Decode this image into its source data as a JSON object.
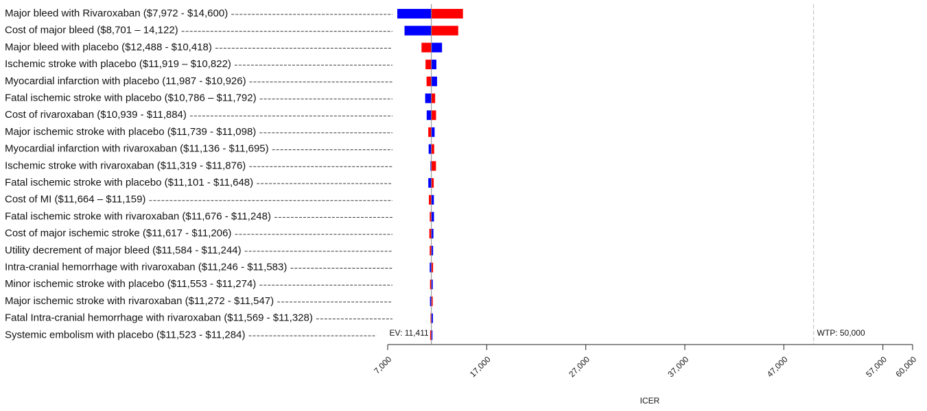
{
  "chart_data": {
    "type": "tornado",
    "x_label": "ICER",
    "categories": [
      "Major bleed with Rivaroxaban ($7,972 - $14,600)",
      "Cost of major bleed ($8,701 – 14,122)",
      "Major bleed with placebo ($12,488 - $10,418)",
      "Ischemic stroke with placebo ($11,919 – $10,822)",
      "Myocardial infarction with placebo (11,987 - $10,926)",
      "Fatal ischemic stroke with placebo ($10,786 – $11,792)",
      "Cost of rivaroxaban ($10,939 - $11,884)",
      "Major ischemic stroke with placebo ($11,739 - $11,098)",
      "Myocardial infarction with rivaroxaban ($11,136 - $11,695)",
      "Ischemic stroke with rivaroxaban ($11,319 - $11,876)",
      "Fatal ischemic stroke with placebo ($11,101 - $11,648)",
      "Cost of MI ($11,664 – $11,159)",
      "Fatal ischemic stroke with rivaroxaban ($11,676 - $11,248)",
      "Cost of major ischemic stroke ($11,617 - $11,206)",
      "Utility decrement of major bleed ($11,584 - $11,244)",
      "Intra-cranial hemorrhage with rivaroxaban ($11,246 - $11,583)",
      "Minor ischemic stroke with placebo ($11,553 - $11,274)",
      "Major ischemic stroke with rivaroxaban ($11,272 - $11,547)",
      "Fatal Intra-cranial hemorrhage with rivaroxaban ($11,569 - $11,328)",
      "Systemic embolism with placebo ($11,523 - $11,284)"
    ],
    "series": [
      {
        "color": "#0000ff",
        "values": [
          7972,
          8701,
          12488,
          11919,
          11987,
          10786,
          10939,
          11739,
          11136,
          11319,
          11101,
          11664,
          11676,
          11617,
          11584,
          11246,
          11553,
          11272,
          11569,
          11523
        ]
      },
      {
        "color": "#ff0000",
        "values": [
          14600,
          14122,
          10418,
          10822,
          10926,
          11792,
          11884,
          11098,
          11695,
          11876,
          11648,
          11159,
          11248,
          11206,
          11244,
          11583,
          11274,
          11547,
          11328,
          11284
        ]
      }
    ],
    "ev": {
      "value": 11411,
      "label": "EV: 11,411"
    },
    "wtp": {
      "value": 50000,
      "label": "WTP: 50,000"
    },
    "xlim": [
      7000,
      60000
    ],
    "xticks": [
      {
        "value": 7000,
        "label": "7,000"
      },
      {
        "value": 17000,
        "label": "17,000"
      },
      {
        "value": 27000,
        "label": "27,000"
      },
      {
        "value": 37000,
        "label": "37,000"
      },
      {
        "value": 47000,
        "label": "47,000"
      },
      {
        "value": 57000,
        "label": "57,000"
      },
      {
        "value": 60000,
        "label": "60,000"
      }
    ]
  }
}
